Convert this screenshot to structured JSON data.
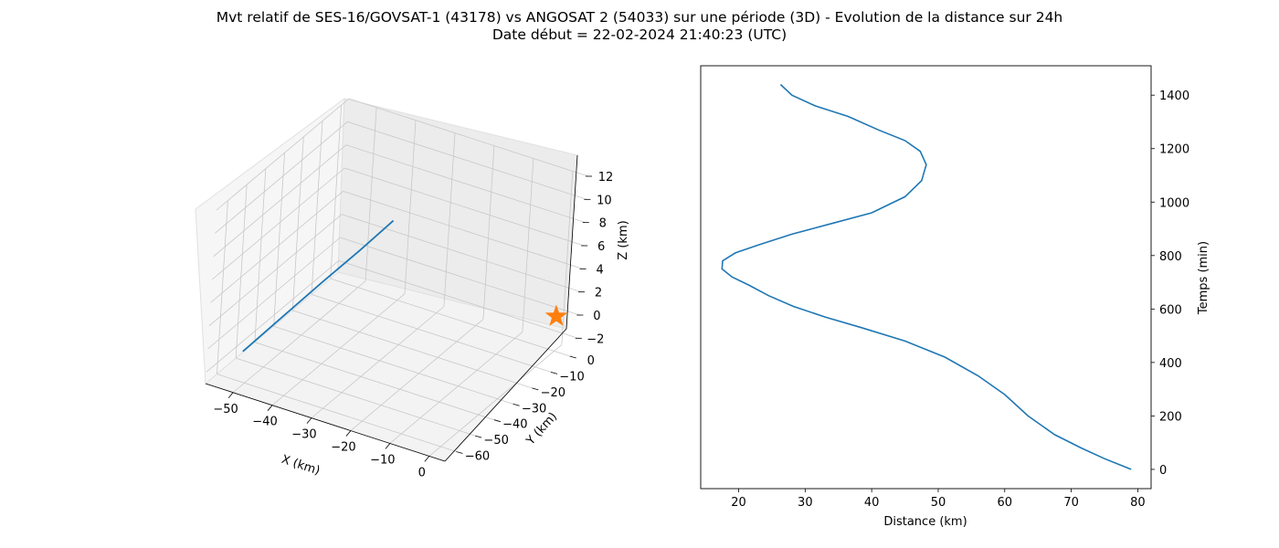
{
  "figure": {
    "title_line1": "Mvt relatif de SES-16/GOVSAT-1 (43178) vs ANGOSAT 2 (54033) sur une période (3D) - Evolution de la distance sur 24h",
    "title_line2": "Date début = 22-02-2024 21:40:23 (UTC)"
  },
  "colors": {
    "series": "#1f77b4",
    "marker": "#ff7f0e",
    "pane": "#f2f2f2",
    "grid": "#c8c8c8"
  },
  "chart_data": [
    {
      "type": "line3d",
      "xlabel": "X (km)",
      "ylabel": "Y (km)",
      "zlabel": "Z (km)",
      "xlim": [
        -57,
        4
      ],
      "ylim": [
        -66,
        4
      ],
      "zlim": [
        -3,
        12
      ],
      "x_ticks": [
        "−50",
        "−40",
        "−30",
        "−20",
        "−10",
        "0"
      ],
      "y_ticks": [
        "−60",
        "−50",
        "−40",
        "−30",
        "−20",
        "−10",
        "0"
      ],
      "z_ticks": [
        "−2",
        "0",
        "2",
        "4",
        "6",
        "8",
        "10",
        "12"
      ],
      "grid": true,
      "series": [
        {
          "x": [
            -50,
            -45,
            -40,
            -35,
            -31
          ],
          "y": [
            -62,
            -52.5,
            -43,
            -33.5,
            -25
          ],
          "z": [
            0,
            2.2,
            4.4,
            6.5,
            8.3
          ]
        }
      ],
      "marker": {
        "symbol": "star",
        "x": 0,
        "y": 0,
        "z": 0
      }
    },
    {
      "type": "line",
      "xlabel": "Distance (km)",
      "ylabel": "Temps (min)",
      "xlim": [
        14.3,
        82
      ],
      "ylim": [
        -72,
        1510
      ],
      "x_ticks": [
        20,
        30,
        40,
        50,
        60,
        70,
        80
      ],
      "y_ticks": [
        0,
        200,
        400,
        600,
        800,
        1000,
        1200,
        1400
      ],
      "grid": false,
      "series": [
        {
          "x": [
            79,
            75,
            71.5,
            67.5,
            63.5,
            60,
            56,
            51,
            45,
            38.5,
            33,
            28.2,
            24.5,
            21.5,
            19,
            17.5,
            17.6,
            19.5,
            23,
            28,
            34,
            40,
            45,
            47.5,
            48.2,
            47.3,
            45,
            41,
            36.5,
            31.5,
            28,
            26.3
          ],
          "y": [
            0,
            40,
            80,
            130,
            200,
            280,
            350,
            420,
            480,
            530,
            570,
            610,
            650,
            690,
            720,
            750,
            780,
            810,
            840,
            880,
            920,
            960,
            1020,
            1080,
            1140,
            1190,
            1230,
            1270,
            1320,
            1360,
            1400,
            1440
          ]
        }
      ]
    }
  ]
}
